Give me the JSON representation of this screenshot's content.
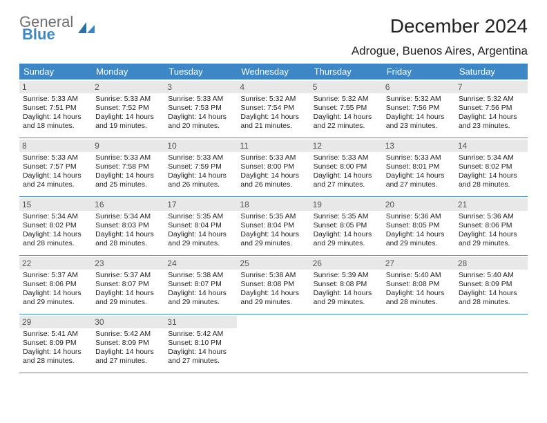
{
  "brand": {
    "line1": "General",
    "line2": "Blue",
    "color1": "#6f6f6f",
    "color2": "#3e87c6"
  },
  "title": "December 2024",
  "location": "Adrogue, Buenos Aires, Argentina",
  "header_bg": "#3e87c6",
  "daynum_bg": "#e8e8e8",
  "divider_color": "#3e87c6",
  "day_names": [
    "Sunday",
    "Monday",
    "Tuesday",
    "Wednesday",
    "Thursday",
    "Friday",
    "Saturday"
  ],
  "labels": {
    "sunrise": "Sunrise:",
    "sunset": "Sunset:",
    "daylight": "Daylight:"
  },
  "weeks": [
    [
      {
        "n": 1,
        "rise": "5:33 AM",
        "set": "7:51 PM",
        "dl": "14 hours and 18 minutes."
      },
      {
        "n": 2,
        "rise": "5:33 AM",
        "set": "7:52 PM",
        "dl": "14 hours and 19 minutes."
      },
      {
        "n": 3,
        "rise": "5:33 AM",
        "set": "7:53 PM",
        "dl": "14 hours and 20 minutes."
      },
      {
        "n": 4,
        "rise": "5:32 AM",
        "set": "7:54 PM",
        "dl": "14 hours and 21 minutes."
      },
      {
        "n": 5,
        "rise": "5:32 AM",
        "set": "7:55 PM",
        "dl": "14 hours and 22 minutes."
      },
      {
        "n": 6,
        "rise": "5:32 AM",
        "set": "7:56 PM",
        "dl": "14 hours and 23 minutes."
      },
      {
        "n": 7,
        "rise": "5:32 AM",
        "set": "7:56 PM",
        "dl": "14 hours and 23 minutes."
      }
    ],
    [
      {
        "n": 8,
        "rise": "5:33 AM",
        "set": "7:57 PM",
        "dl": "14 hours and 24 minutes."
      },
      {
        "n": 9,
        "rise": "5:33 AM",
        "set": "7:58 PM",
        "dl": "14 hours and 25 minutes."
      },
      {
        "n": 10,
        "rise": "5:33 AM",
        "set": "7:59 PM",
        "dl": "14 hours and 26 minutes."
      },
      {
        "n": 11,
        "rise": "5:33 AM",
        "set": "8:00 PM",
        "dl": "14 hours and 26 minutes."
      },
      {
        "n": 12,
        "rise": "5:33 AM",
        "set": "8:00 PM",
        "dl": "14 hours and 27 minutes."
      },
      {
        "n": 13,
        "rise": "5:33 AM",
        "set": "8:01 PM",
        "dl": "14 hours and 27 minutes."
      },
      {
        "n": 14,
        "rise": "5:34 AM",
        "set": "8:02 PM",
        "dl": "14 hours and 28 minutes."
      }
    ],
    [
      {
        "n": 15,
        "rise": "5:34 AM",
        "set": "8:02 PM",
        "dl": "14 hours and 28 minutes."
      },
      {
        "n": 16,
        "rise": "5:34 AM",
        "set": "8:03 PM",
        "dl": "14 hours and 28 minutes."
      },
      {
        "n": 17,
        "rise": "5:35 AM",
        "set": "8:04 PM",
        "dl": "14 hours and 29 minutes."
      },
      {
        "n": 18,
        "rise": "5:35 AM",
        "set": "8:04 PM",
        "dl": "14 hours and 29 minutes."
      },
      {
        "n": 19,
        "rise": "5:35 AM",
        "set": "8:05 PM",
        "dl": "14 hours and 29 minutes."
      },
      {
        "n": 20,
        "rise": "5:36 AM",
        "set": "8:05 PM",
        "dl": "14 hours and 29 minutes."
      },
      {
        "n": 21,
        "rise": "5:36 AM",
        "set": "8:06 PM",
        "dl": "14 hours and 29 minutes."
      }
    ],
    [
      {
        "n": 22,
        "rise": "5:37 AM",
        "set": "8:06 PM",
        "dl": "14 hours and 29 minutes."
      },
      {
        "n": 23,
        "rise": "5:37 AM",
        "set": "8:07 PM",
        "dl": "14 hours and 29 minutes."
      },
      {
        "n": 24,
        "rise": "5:38 AM",
        "set": "8:07 PM",
        "dl": "14 hours and 29 minutes."
      },
      {
        "n": 25,
        "rise": "5:38 AM",
        "set": "8:08 PM",
        "dl": "14 hours and 29 minutes."
      },
      {
        "n": 26,
        "rise": "5:39 AM",
        "set": "8:08 PM",
        "dl": "14 hours and 29 minutes."
      },
      {
        "n": 27,
        "rise": "5:40 AM",
        "set": "8:08 PM",
        "dl": "14 hours and 28 minutes."
      },
      {
        "n": 28,
        "rise": "5:40 AM",
        "set": "8:09 PM",
        "dl": "14 hours and 28 minutes."
      }
    ],
    [
      {
        "n": 29,
        "rise": "5:41 AM",
        "set": "8:09 PM",
        "dl": "14 hours and 28 minutes."
      },
      {
        "n": 30,
        "rise": "5:42 AM",
        "set": "8:09 PM",
        "dl": "14 hours and 27 minutes."
      },
      {
        "n": 31,
        "rise": "5:42 AM",
        "set": "8:10 PM",
        "dl": "14 hours and 27 minutes."
      },
      null,
      null,
      null,
      null
    ]
  ]
}
